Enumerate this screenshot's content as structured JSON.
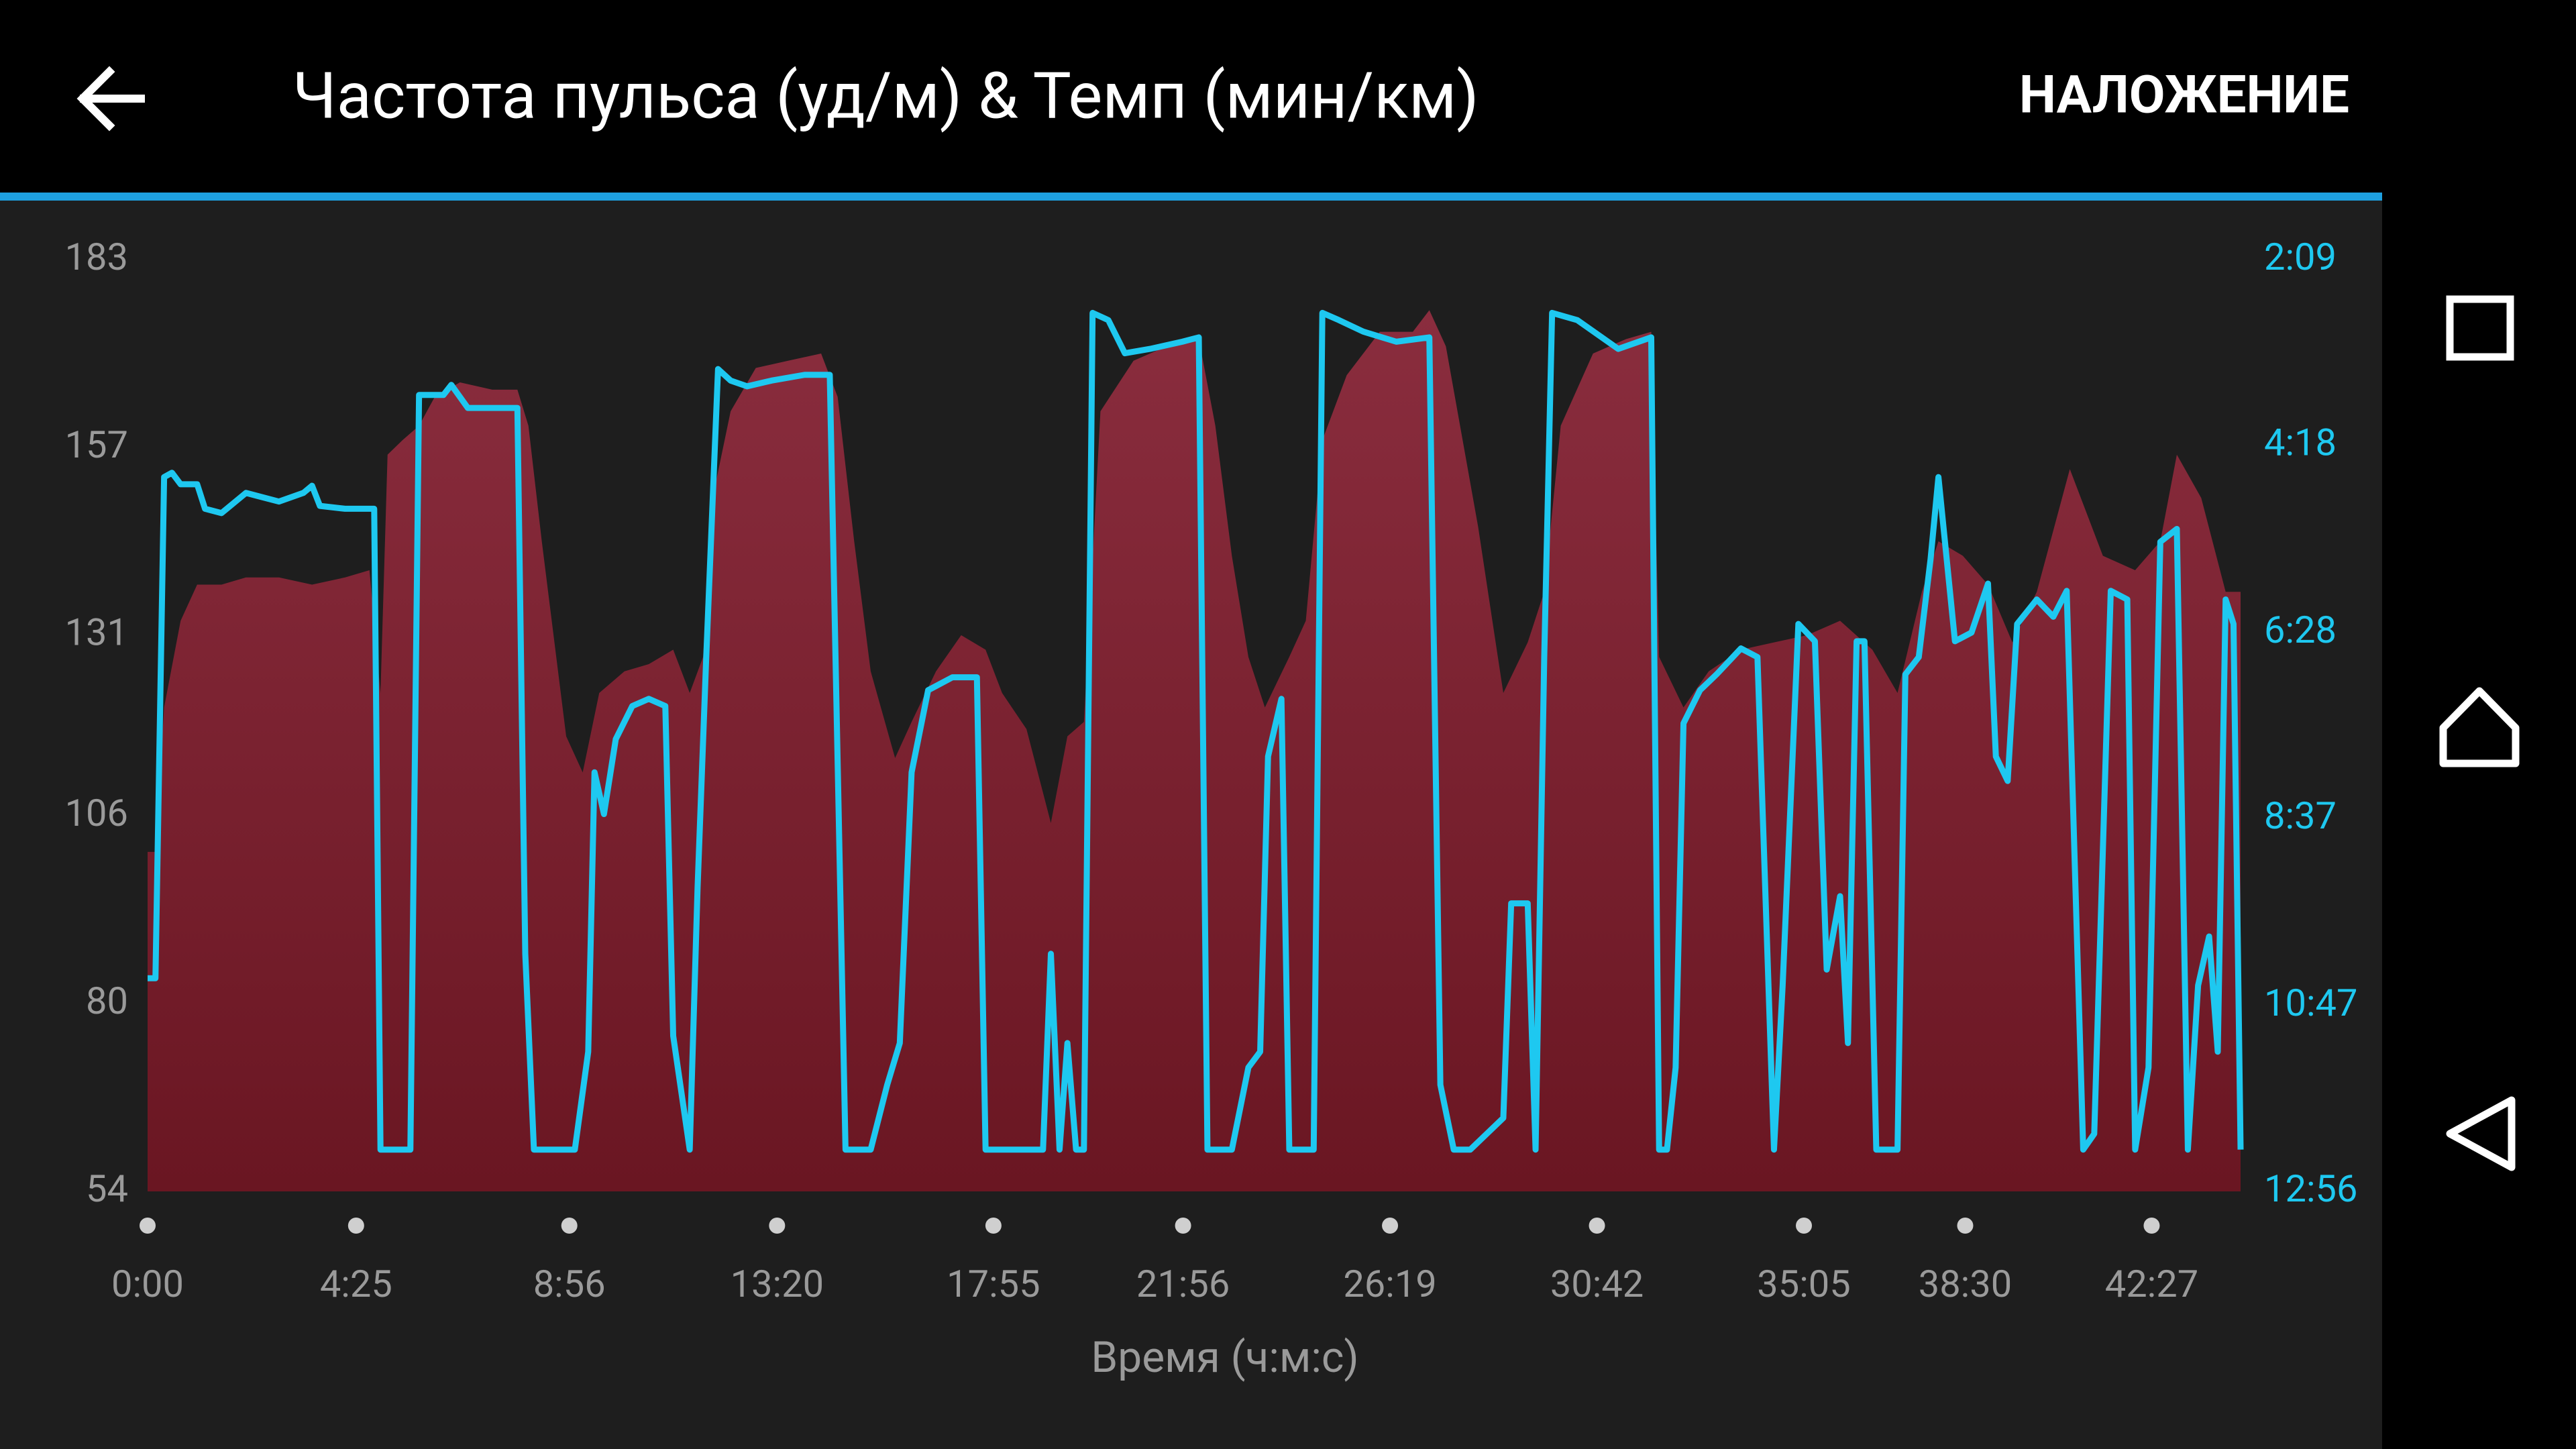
{
  "header": {
    "title": "Частота пульса (уд/м) & Темп (мин/км)",
    "action": "НАЛОЖЕНИЕ"
  },
  "chart_data": {
    "type": "area",
    "xlabel": "Время (ч:м:с)",
    "xlim": [
      0,
      2660
    ],
    "xticks": [
      {
        "value": 0,
        "label": "0:00"
      },
      {
        "value": 265,
        "label": "4:25"
      },
      {
        "value": 536,
        "label": "8:56"
      },
      {
        "value": 800,
        "label": "13:20"
      },
      {
        "value": 1075,
        "label": "17:55"
      },
      {
        "value": 1316,
        "label": "21:56"
      },
      {
        "value": 1579,
        "label": "26:19"
      },
      {
        "value": 1842,
        "label": "30:42"
      },
      {
        "value": 2105,
        "label": "35:05"
      },
      {
        "value": 2310,
        "label": "38:30"
      },
      {
        "value": 2547,
        "label": "42:27"
      }
    ],
    "ylim": [
      54,
      183
    ],
    "yticks": [
      54,
      80,
      106,
      131,
      157,
      183
    ],
    "y2lim": [
      776,
      129
    ],
    "y2ticks": [
      {
        "value": 776,
        "label": "12:56"
      },
      {
        "value": 647,
        "label": "10:47"
      },
      {
        "value": 517,
        "label": "8:37"
      },
      {
        "value": 388,
        "label": "6:28"
      },
      {
        "value": 258,
        "label": "4:18"
      },
      {
        "value": 129,
        "label": "2:09"
      }
    ],
    "series": [
      {
        "type": "area",
        "color": "#8a2d3e",
        "x": [
          0,
          10,
          21,
          42,
          63,
          94,
          125,
          167,
          209,
          251,
          282,
          296,
          305,
          324,
          345,
          365,
          397,
          438,
          470,
          484,
          501,
          532,
          553,
          574,
          606,
          637,
          668,
          689,
          706,
          720,
          741,
          773,
          814,
          856,
          877,
          898,
          919,
          950,
          971,
          1002,
          1034,
          1065,
          1086,
          1117,
          1148,
          1169,
          1190,
          1211,
          1253,
          1295,
          1336,
          1357,
          1378,
          1399,
          1420,
          1451,
          1472,
          1493,
          1524,
          1566,
          1608,
          1629,
          1650,
          1691,
          1723,
          1754,
          1775,
          1796,
          1837,
          1879,
          1911,
          1921,
          1952,
          1984,
          2025,
          2067,
          2109,
          2151,
          2192,
          2224,
          2255,
          2276,
          2307,
          2339,
          2370,
          2401,
          2443,
          2485,
          2526,
          2558,
          2579,
          2610,
          2641,
          2660
        ],
        "values": [
          101,
          101,
          121,
          133,
          138,
          138,
          139,
          139,
          138,
          139,
          140,
          123,
          156,
          158,
          160,
          164,
          166,
          165,
          165,
          160,
          144,
          117,
          112,
          123,
          126,
          127,
          129,
          123,
          128,
          151,
          162,
          168,
          169,
          170,
          164,
          144,
          126,
          114,
          119,
          126,
          131,
          129,
          123,
          118,
          105,
          117,
          119,
          162,
          169,
          171,
          172,
          160,
          142,
          128,
          121,
          128,
          133,
          158,
          167,
          173,
          173,
          176,
          171,
          146,
          123,
          130,
          137,
          160,
          170,
          172,
          173,
          128,
          121,
          126,
          129,
          130,
          131,
          133,
          129,
          123,
          137,
          144,
          142,
          138,
          130,
          137,
          154,
          142,
          140,
          144,
          156,
          150,
          137,
          137
        ]
      },
      {
        "type": "line",
        "axis": "y2",
        "color": "#1ec8f0",
        "x": [
          0,
          10,
          21,
          31,
          42,
          63,
          73,
          94,
          125,
          167,
          198,
          209,
          219,
          251,
          288,
          296,
          334,
          345,
          376,
          386,
          407,
          438,
          470,
          480,
          491,
          543,
          560,
          568,
          580,
          595,
          616,
          637,
          658,
          668,
          689,
          699,
          710,
          725,
          741,
          762,
          793,
          835,
          867,
          887,
          919,
          940,
          956,
          971,
          992,
          1023,
          1054,
          1065,
          1138,
          1148,
          1159,
          1169,
          1180,
          1190,
          1201,
          1221,
          1242,
          1274,
          1315,
          1336,
          1347,
          1378,
          1399,
          1414,
          1424,
          1441,
          1451,
          1482,
          1493,
          1514,
          1545,
          1587,
          1629,
          1643,
          1660,
          1681,
          1723,
          1733,
          1754,
          1764,
          1775,
          1785,
          1817,
          1869,
          1911,
          1921,
          1931,
          1942,
          1952,
          1973,
          1994,
          2025,
          2046,
          2067,
          2078,
          2098,
          2119,
          2134,
          2151,
          2161,
          2172,
          2182,
          2197,
          2224,
          2234,
          2251,
          2266,
          2276,
          2297,
          2318,
          2339,
          2349,
          2364,
          2376,
          2401,
          2422,
          2439,
          2460,
          2474,
          2495,
          2516,
          2526,
          2543,
          2558,
          2579,
          2593,
          2606,
          2620,
          2631,
          2641,
          2651,
          2660
        ],
        "values": [
          628,
          628,
          280,
          277,
          285,
          285,
          302,
          305,
          291,
          297,
          291,
          286,
          300,
          302,
          302,
          747,
          747,
          223,
          223,
          216,
          232,
          232,
          232,
          611,
          747,
          747,
          679,
          485,
          514,
          462,
          439,
          434,
          439,
          668,
          747,
          565,
          405,
          205,
          213,
          217,
          213,
          209,
          209,
          747,
          747,
          702,
          673,
          485,
          428,
          419,
          419,
          747,
          747,
          611,
          747,
          673,
          747,
          747,
          166,
          171,
          194,
          191,
          186,
          183,
          747,
          747,
          690,
          679,
          474,
          434,
          747,
          747,
          166,
          171,
          179,
          186,
          183,
          702,
          747,
          747,
          725,
          576,
          576,
          747,
          405,
          166,
          171,
          191,
          183,
          747,
          747,
          690,
          451,
          428,
          417,
          399,
          405,
          747,
          633,
          382,
          394,
          622,
          571,
          673,
          394,
          394,
          747,
          747,
          417,
          405,
          337,
          280,
          394,
          388,
          354,
          474,
          491,
          382,
          365,
          377,
          359,
          747,
          736,
          359,
          365,
          747,
          690,
          325,
          316,
          747,
          633,
          599,
          679,
          365,
          382,
          747
        ]
      }
    ]
  }
}
